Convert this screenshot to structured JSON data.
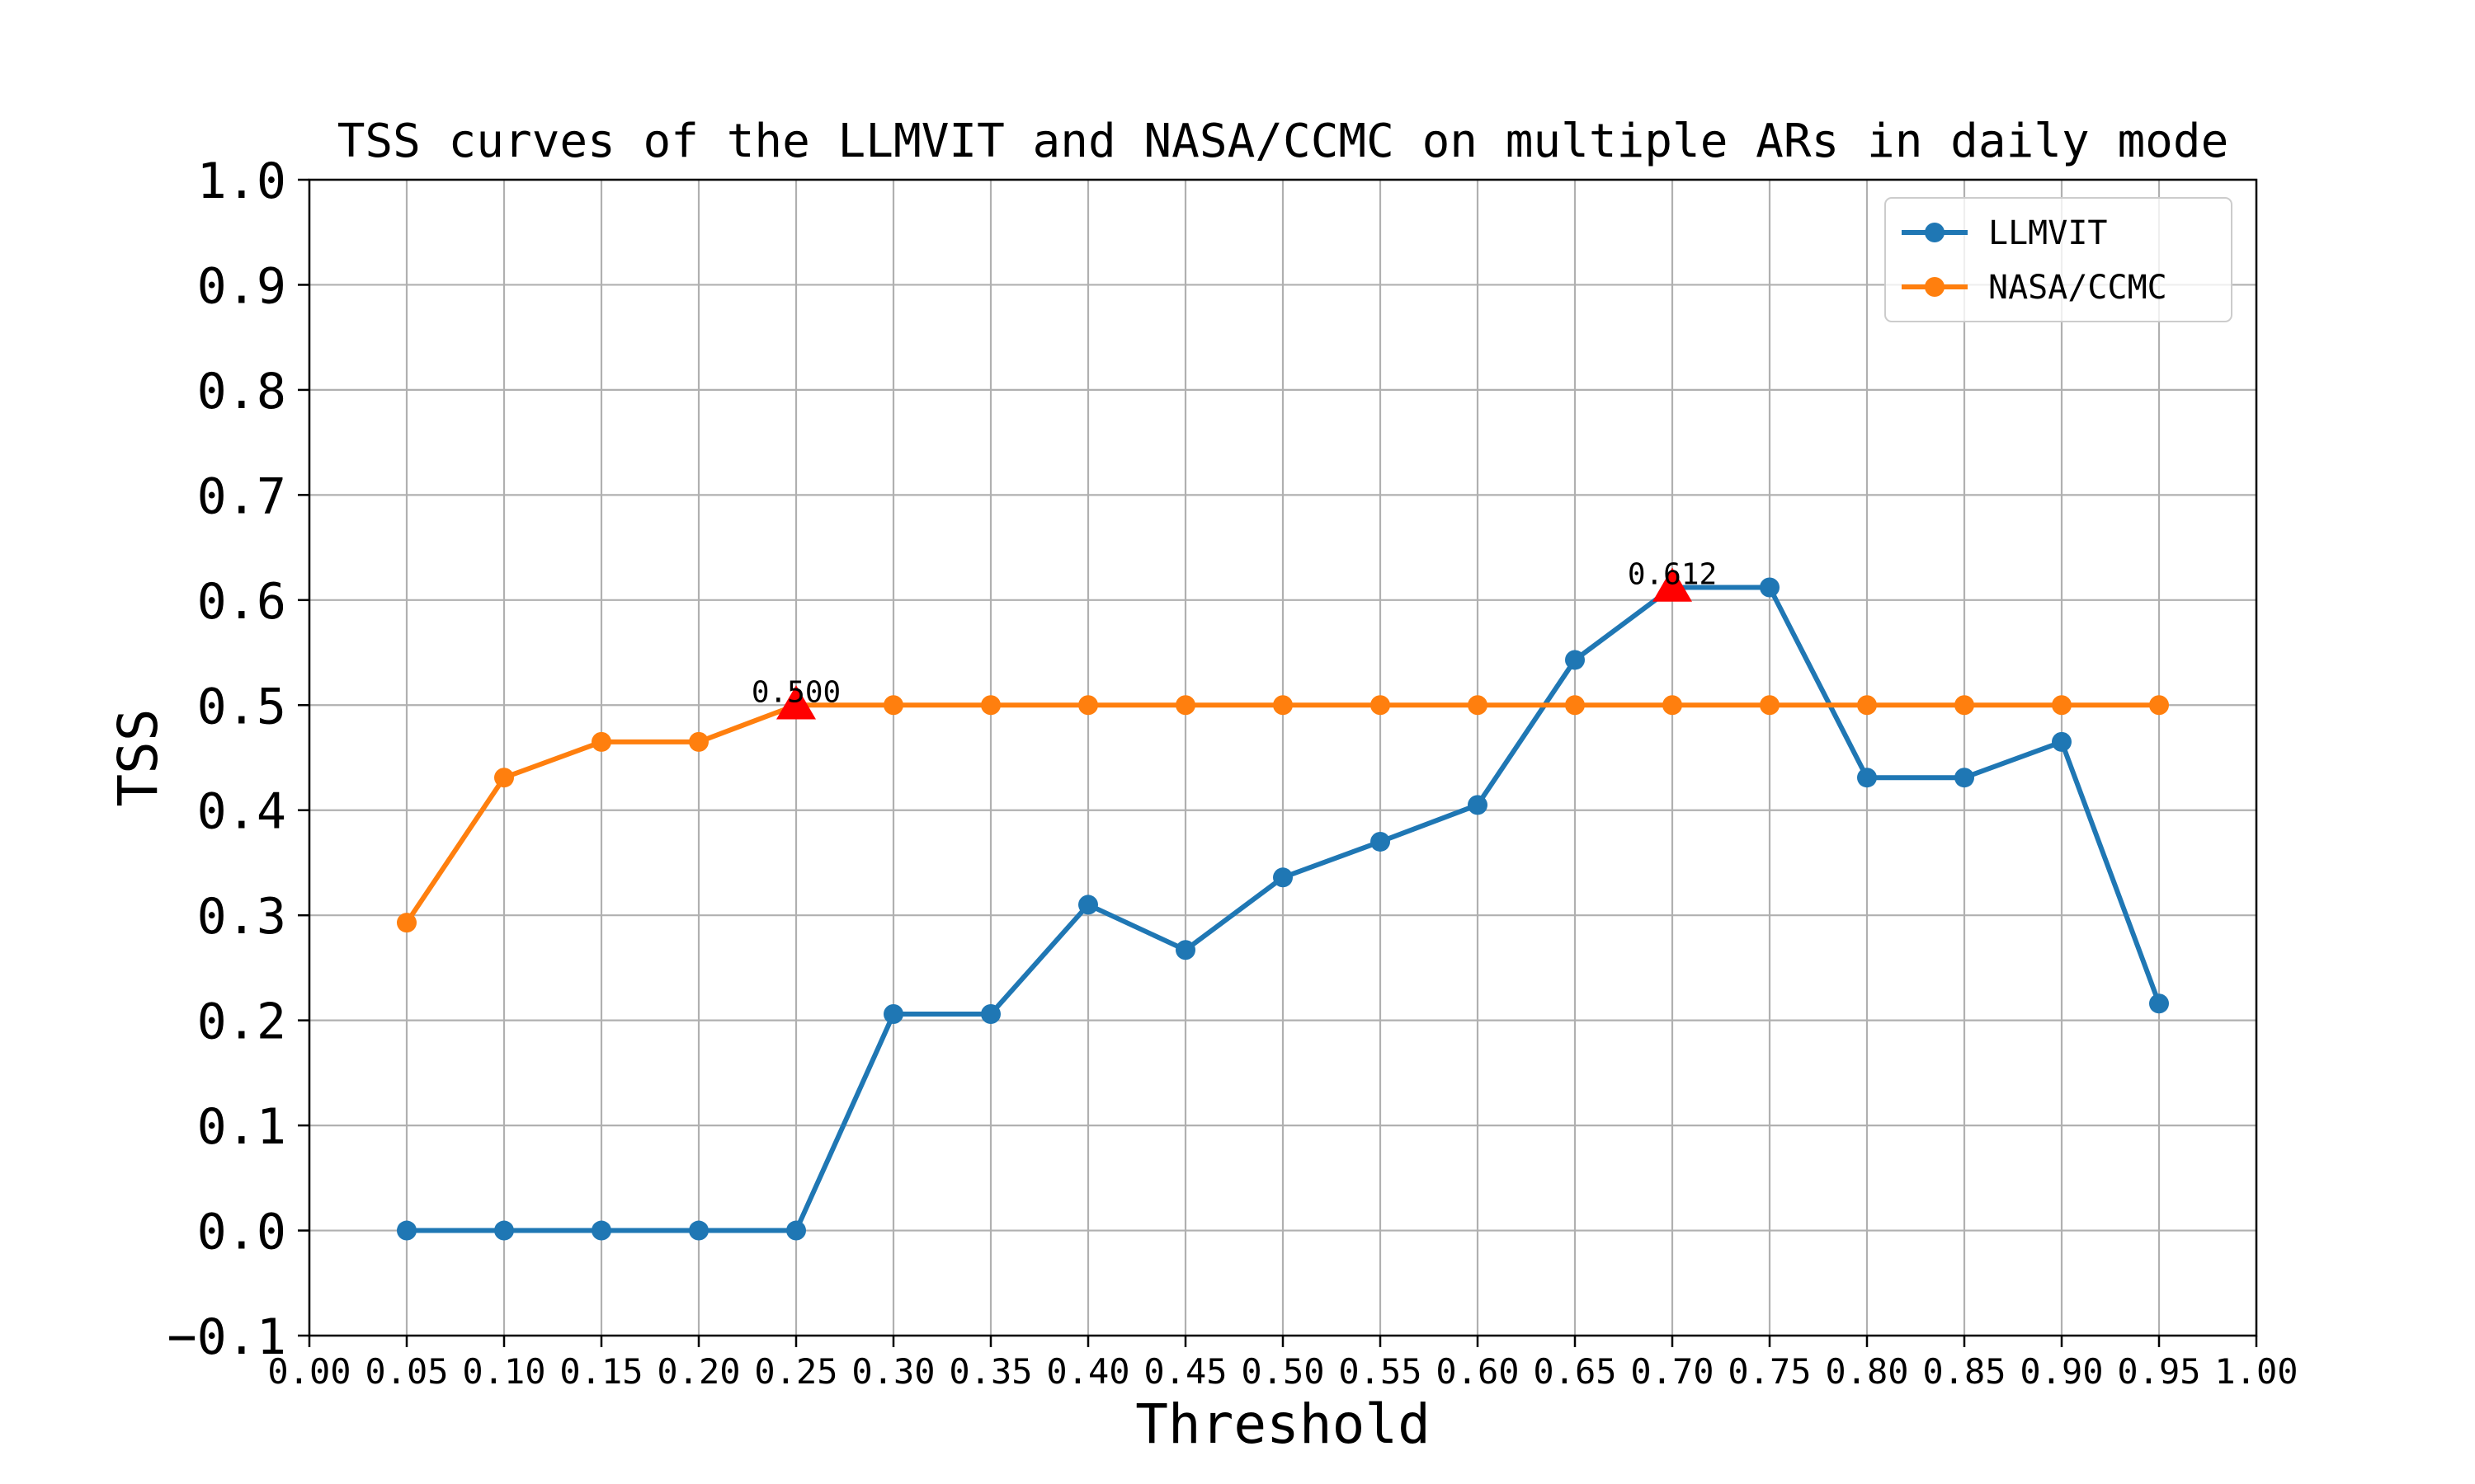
{
  "chart_data": {
    "type": "line",
    "title": "TSS curves of the LLMVIT and NASA/CCMC on multiple ARs in daily mode",
    "xlabel": "Threshold",
    "ylabel": "TSS",
    "xlim": [
      0.0,
      1.0
    ],
    "ylim": [
      -0.1,
      1.0
    ],
    "grid": true,
    "legend_position": "top-right",
    "x_ticks": [
      "0.00",
      "0.05",
      "0.10",
      "0.15",
      "0.20",
      "0.25",
      "0.30",
      "0.35",
      "0.40",
      "0.45",
      "0.50",
      "0.55",
      "0.60",
      "0.65",
      "0.70",
      "0.75",
      "0.80",
      "0.85",
      "0.90",
      "0.95",
      "1.00"
    ],
    "y_ticks": [
      "−0.1",
      "0.0",
      "0.1",
      "0.2",
      "0.3",
      "0.4",
      "0.5",
      "0.6",
      "0.7",
      "0.8",
      "0.9",
      "1.0"
    ],
    "x": [
      0.05,
      0.1,
      0.15,
      0.2,
      0.25,
      0.3,
      0.35,
      0.4,
      0.45,
      0.5,
      0.55,
      0.6,
      0.65,
      0.7,
      0.75,
      0.8,
      0.85,
      0.9,
      0.95
    ],
    "series": [
      {
        "name": "LLMVIT",
        "color": "#1f77b4",
        "values": [
          0.0,
          0.0,
          0.0,
          0.0,
          0.0,
          0.206,
          0.206,
          0.31,
          0.267,
          0.336,
          0.37,
          0.405,
          0.543,
          0.612,
          0.612,
          0.431,
          0.431,
          0.465,
          0.216
        ],
        "max_annotation": {
          "x": 0.7,
          "y": 0.612,
          "label": "0.612"
        }
      },
      {
        "name": "NASA/CCMC",
        "color": "#ff7f0e",
        "values": [
          0.293,
          0.431,
          0.465,
          0.465,
          0.5,
          0.5,
          0.5,
          0.5,
          0.5,
          0.5,
          0.5,
          0.5,
          0.5,
          0.5,
          0.5,
          0.5,
          0.5,
          0.5,
          0.5
        ],
        "max_annotation": {
          "x": 0.25,
          "y": 0.5,
          "label": "0.500"
        }
      }
    ],
    "annotation_marker_color": "#ff0000"
  }
}
